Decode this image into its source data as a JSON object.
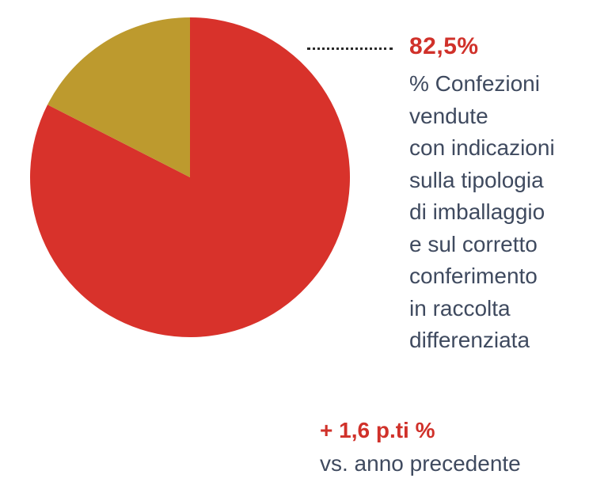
{
  "chart_data": {
    "type": "pie",
    "slices": [
      {
        "value": 82.5,
        "color": "#d8322b"
      },
      {
        "value": 17.5,
        "color": "#bd9a2e"
      }
    ],
    "start_angle_deg": 0,
    "direction": "clockwise"
  },
  "callout": {
    "value": "82,5%",
    "description_lines": [
      "% Confezioni",
      "vendute",
      "con indicazioni",
      "sulla tipologia",
      "di imballaggio",
      "e sul corretto",
      "conferimento",
      "in raccolta",
      "differenziata"
    ]
  },
  "delta": {
    "value": "+ 1,6 p.ti %",
    "description": "vs. anno precedente"
  },
  "colors": {
    "accent": "#d0312a",
    "text": "#3f4a5f"
  }
}
